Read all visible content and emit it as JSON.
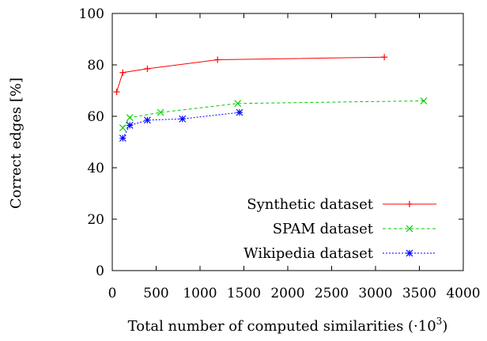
{
  "chart_data": {
    "type": "line",
    "xlabel": "Total number of computed similarities (·10",
    "xlabel_sup": "3",
    "xlabel_close": ")",
    "ylabel": "Correct edges [%]",
    "xlim": [
      0,
      4000
    ],
    "ylim": [
      0,
      100
    ],
    "xticks": [
      0,
      500,
      1000,
      1500,
      2000,
      2500,
      3000,
      3500,
      4000
    ],
    "yticks": [
      0,
      20,
      40,
      60,
      80,
      100
    ],
    "grid": false,
    "legend_position": "bottom-right",
    "series": [
      {
        "name": "Synthetic dataset",
        "color": "#ff0000",
        "marker": "plus",
        "dash": "solid",
        "points": [
          [
            50,
            69.5
          ],
          [
            120,
            77
          ],
          [
            400,
            78.5
          ],
          [
            1200,
            82
          ],
          [
            3100,
            83
          ]
        ]
      },
      {
        "name": "SPAM dataset",
        "color": "#00cc00",
        "marker": "x",
        "dash": "dashed",
        "points": [
          [
            120,
            55.5
          ],
          [
            200,
            59.5
          ],
          [
            550,
            61.5
          ],
          [
            1430,
            65
          ],
          [
            3550,
            66
          ]
        ]
      },
      {
        "name": "Wikipedia dataset",
        "color": "#0000ff",
        "marker": "star",
        "dash": "dotted",
        "points": [
          [
            120,
            51.5
          ],
          [
            200,
            56.5
          ],
          [
            400,
            58.5
          ],
          [
            800,
            59
          ],
          [
            1450,
            61.5
          ]
        ]
      }
    ]
  }
}
